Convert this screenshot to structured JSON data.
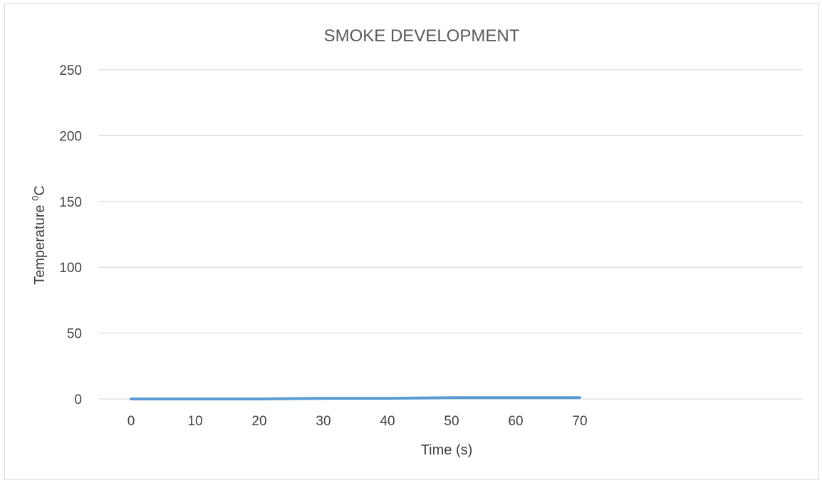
{
  "chart_data": {
    "type": "line",
    "title": "SMOKE DEVELOPMENT",
    "xlabel": "Time (s)",
    "ylabel": "Temperature 0C",
    "ylabel_base": "Temperature ",
    "ylabel_sup": "0",
    "ylabel_unit": "C",
    "xlim": [
      0,
      70
    ],
    "ylim": [
      0,
      250
    ],
    "x_ticks": [
      0,
      10,
      20,
      30,
      40,
      50,
      60,
      70
    ],
    "y_ticks": [
      0,
      50,
      100,
      150,
      200,
      250
    ],
    "grid": true,
    "legend": "none",
    "series": [
      {
        "color": "#5b9bd5",
        "x": [
          0,
          10,
          20,
          30,
          40,
          50,
          60,
          70
        ],
        "y": [
          0,
          0,
          0,
          0.5,
          0.5,
          1,
          1,
          1
        ]
      }
    ]
  }
}
